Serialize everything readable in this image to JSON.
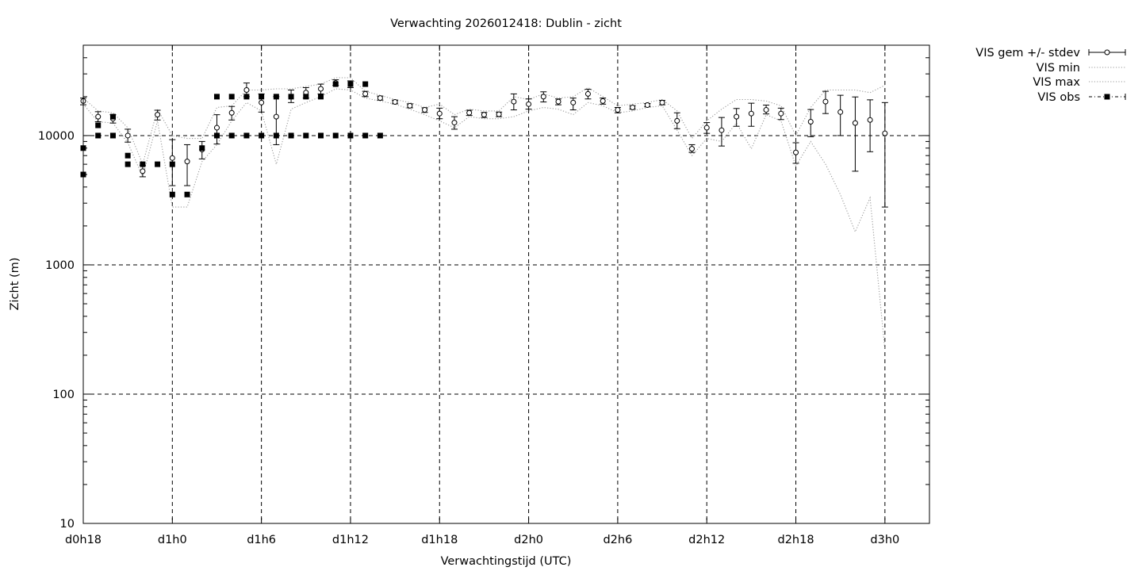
{
  "chart_data": {
    "type": "scatter",
    "title": "Verwachting 2026012418: Dublin - zicht",
    "xlabel": "Verwachtingstijd (UTC)",
    "ylabel": "Zicht (m)",
    "x_unit": "hours",
    "xlim": [
      18,
      75
    ],
    "ylim": [
      10,
      50000
    ],
    "y_scale": "log",
    "grid": true,
    "legend_position": "outside-top-right",
    "x_ticks": [
      {
        "value": 18,
        "label": "d0h18"
      },
      {
        "value": 24,
        "label": "d1h0"
      },
      {
        "value": 30,
        "label": "d1h6"
      },
      {
        "value": 36,
        "label": "d1h12"
      },
      {
        "value": 42,
        "label": "d1h18"
      },
      {
        "value": 48,
        "label": "d2h0"
      },
      {
        "value": 54,
        "label": "d2h6"
      },
      {
        "value": 60,
        "label": "d2h12"
      },
      {
        "value": 66,
        "label": "d2h18"
      },
      {
        "value": 72,
        "label": "d3h0"
      }
    ],
    "y_ticks": [
      {
        "value": 10,
        "label": "10"
      },
      {
        "value": 100,
        "label": "100"
      },
      {
        "value": 1000,
        "label": "1000"
      },
      {
        "value": 10000,
        "label": "10000"
      }
    ],
    "legend": [
      {
        "label": "VIS gem +/- stdev",
        "style": "errorbar-open-circle"
      },
      {
        "label": "VIS min",
        "style": "dotted"
      },
      {
        "label": "VIS max",
        "style": "dotted"
      },
      {
        "label": "VIS obs",
        "style": "dash-dot-filled-square"
      }
    ],
    "series": [
      {
        "name": "VIS gem +/- stdev",
        "x": [
          18,
          19,
          20,
          21,
          22,
          23,
          24,
          25,
          26,
          27,
          28,
          29,
          30,
          31,
          32,
          33,
          34,
          35,
          36,
          37,
          38,
          39,
          40,
          41,
          42,
          43,
          44,
          45,
          46,
          47,
          48,
          49,
          50,
          51,
          52,
          53,
          54,
          55,
          56,
          57,
          58,
          59,
          60,
          61,
          62,
          63,
          64,
          65,
          66,
          67,
          68,
          69,
          70,
          71,
          72
        ],
        "values": [
          18500,
          14000,
          13500,
          10000,
          5300,
          14500,
          6700,
          6300,
          7800,
          11500,
          15000,
          22500,
          18000,
          14000,
          20000,
          21500,
          23000,
          25500,
          25000,
          21000,
          19500,
          18200,
          17000,
          15800,
          14800,
          12600,
          15000,
          14500,
          14600,
          18300,
          17500,
          20000,
          18300,
          18000,
          21000,
          18500,
          15800,
          16500,
          17200,
          18000,
          13000,
          7900,
          11500,
          11000,
          14000,
          14800,
          15800,
          14800,
          7400,
          12800,
          18300,
          15200,
          12500,
          13200,
          10400
        ],
        "err_low": [
          17300,
          12800,
          12500,
          8900,
          4800,
          13200,
          4100,
          4100,
          6600,
          8600,
          13200,
          20000,
          15200,
          8500,
          18000,
          19500,
          21000,
          24500,
          23500,
          20000,
          18800,
          17600,
          16400,
          15100,
          13500,
          11200,
          14300,
          13800,
          14000,
          15800,
          16000,
          18200,
          17300,
          15800,
          19200,
          17500,
          15000,
          16000,
          16700,
          17300,
          11300,
          7400,
          10400,
          8300,
          11800,
          11800,
          14700,
          13300,
          6100,
          9800,
          14800,
          10000,
          5300,
          7500,
          2800
        ],
        "err_high": [
          19500,
          15300,
          14500,
          11200,
          5900,
          15700,
          9300,
          8500,
          9000,
          14500,
          16800,
          25500,
          21000,
          20000,
          22500,
          23500,
          25000,
          27000,
          26500,
          22000,
          20200,
          18800,
          17600,
          16400,
          16300,
          14000,
          15700,
          15100,
          15200,
          21000,
          19200,
          21800,
          19200,
          19500,
          22800,
          19500,
          16500,
          17000,
          17700,
          18700,
          15000,
          8500,
          12600,
          13800,
          16200,
          17800,
          17200,
          16300,
          8800,
          15900,
          22000,
          20500,
          19900,
          18900,
          18000
        ]
      },
      {
        "name": "VIS min",
        "x": [
          18,
          19,
          20,
          21,
          22,
          23,
          24,
          25,
          26,
          27,
          28,
          29,
          30,
          31,
          32,
          33,
          34,
          35,
          36,
          37,
          38,
          39,
          40,
          41,
          42,
          43,
          44,
          45,
          46,
          47,
          48,
          49,
          50,
          51,
          52,
          53,
          54,
          55,
          56,
          57,
          58,
          59,
          60,
          61,
          62,
          63,
          64,
          65,
          66,
          67,
          68,
          69,
          70,
          71,
          72
        ],
        "values": [
          17500,
          12800,
          12500,
          8800,
          4800,
          13000,
          2800,
          2800,
          6300,
          8500,
          13000,
          18000,
          15500,
          6000,
          16000,
          18000,
          20000,
          23000,
          22500,
          19500,
          18500,
          17500,
          16000,
          14500,
          13000,
          11500,
          14000,
          13500,
          13500,
          14000,
          15500,
          16500,
          16000,
          14500,
          18000,
          17000,
          15000,
          15500,
          16500,
          17000,
          11000,
          7000,
          9500,
          9000,
          12500,
          7900,
          14500,
          13000,
          5800,
          9000,
          6000,
          3500,
          1800,
          3300,
          220
        ]
      },
      {
        "name": "VIS max",
        "x": [
          18,
          19,
          20,
          21,
          22,
          23,
          24,
          25,
          26,
          27,
          28,
          29,
          30,
          31,
          32,
          33,
          34,
          35,
          36,
          37,
          38,
          39,
          40,
          41,
          42,
          43,
          44,
          45,
          46,
          47,
          48,
          49,
          50,
          51,
          52,
          53,
          54,
          55,
          56,
          57,
          58,
          59,
          60,
          61,
          62,
          63,
          64,
          65,
          66,
          67,
          68,
          69,
          70,
          71,
          72
        ],
        "values": [
          19500,
          15500,
          15000,
          11500,
          6000,
          16000,
          10000,
          9500,
          9500,
          16500,
          17000,
          22500,
          22500,
          23000,
          23000,
          24000,
          25000,
          28000,
          28000,
          22000,
          20500,
          19000,
          18000,
          16500,
          17500,
          14500,
          16000,
          15500,
          15500,
          20000,
          19000,
          21000,
          19500,
          20000,
          23500,
          20000,
          17000,
          17500,
          18000,
          19000,
          15500,
          9500,
          13000,
          16000,
          19000,
          19000,
          18500,
          17000,
          10000,
          16500,
          22500,
          22500,
          22500,
          21500,
          24500
        ]
      },
      {
        "name": "VIS obs",
        "points": [
          [
            18,
            8000
          ],
          [
            18,
            5000
          ],
          [
            19,
            12000
          ],
          [
            19,
            10000
          ],
          [
            20,
            14000
          ],
          [
            20,
            10000
          ],
          [
            21,
            7000
          ],
          [
            21,
            6000
          ],
          [
            22,
            6000
          ],
          [
            23,
            6000
          ],
          [
            24,
            6000
          ],
          [
            24,
            3500
          ],
          [
            25,
            3500
          ],
          [
            26,
            8000
          ],
          [
            27,
            20000
          ],
          [
            27,
            10000
          ],
          [
            28,
            20000
          ],
          [
            28,
            10000
          ],
          [
            29,
            20000
          ],
          [
            29,
            10000
          ],
          [
            30,
            20000
          ],
          [
            30,
            10000
          ],
          [
            31,
            20000
          ],
          [
            31,
            10000
          ],
          [
            32,
            20000
          ],
          [
            32,
            10000
          ],
          [
            33,
            20000
          ],
          [
            33,
            10000
          ],
          [
            34,
            20000
          ],
          [
            34,
            10000
          ],
          [
            35,
            25000
          ],
          [
            35,
            10000
          ],
          [
            36,
            25000
          ],
          [
            36,
            10000
          ],
          [
            37,
            25000
          ],
          [
            37,
            10000
          ],
          [
            38,
            10000
          ]
        ]
      }
    ]
  }
}
